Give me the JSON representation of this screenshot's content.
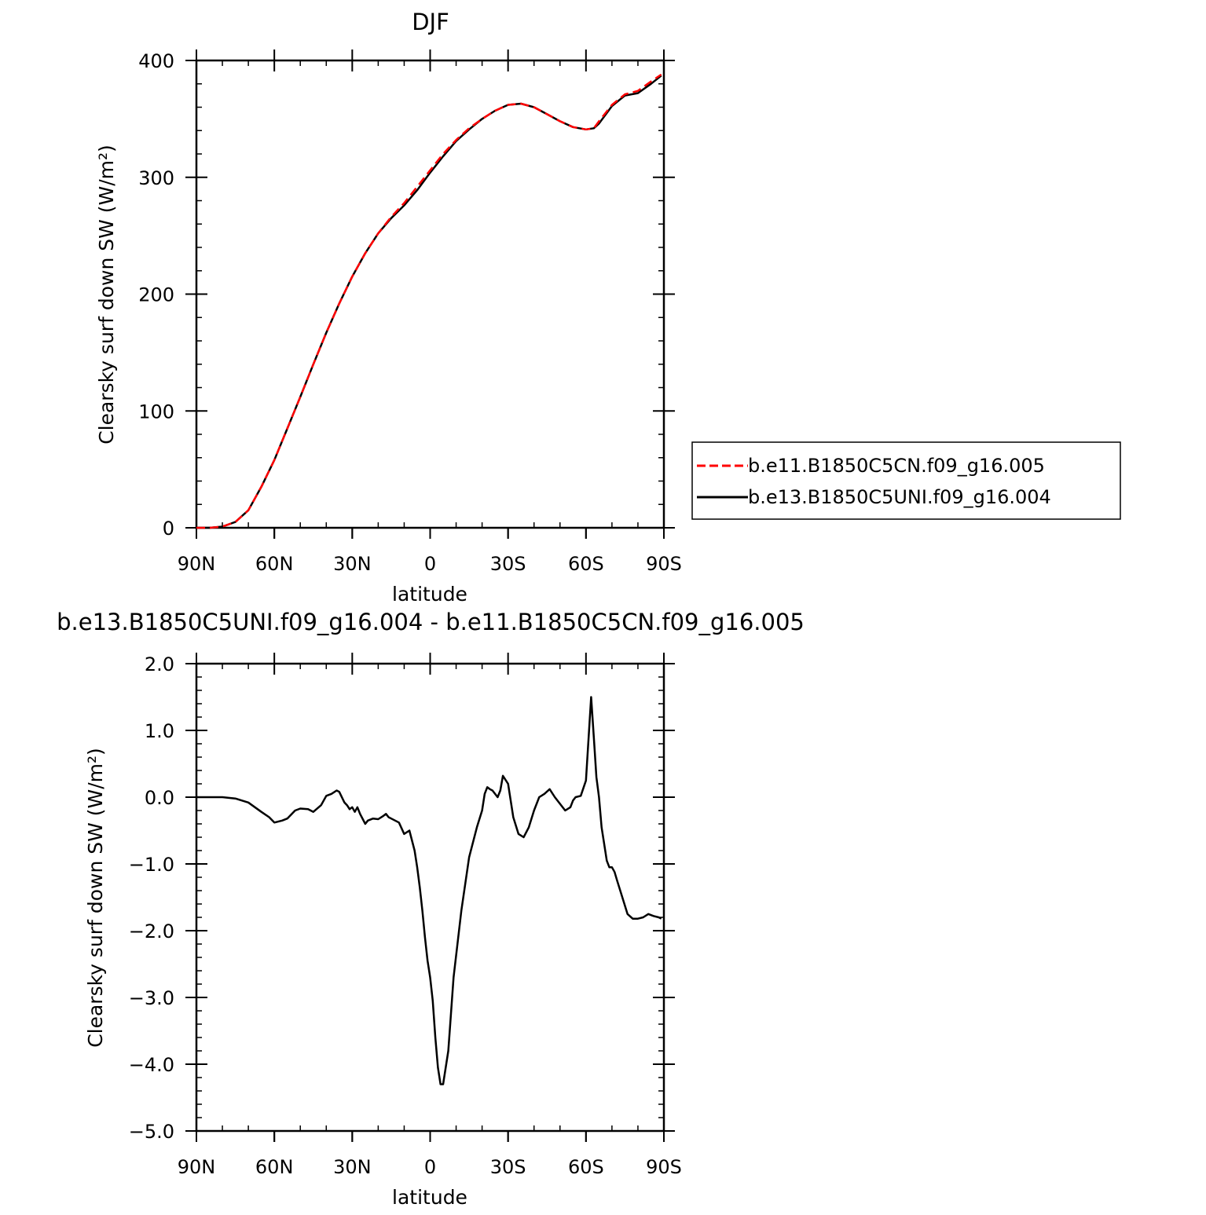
{
  "chart_data": [
    {
      "type": "line",
      "title": "DJF",
      "xlabel": "latitude",
      "ylabel": "Clearsky surf down SW (W/m²)",
      "xlim": [
        90,
        -90
      ],
      "ylim": [
        0,
        400
      ],
      "x_ticks": [
        {
          "value": 90,
          "label": "90N"
        },
        {
          "value": 60,
          "label": "60N"
        },
        {
          "value": 30,
          "label": "30N"
        },
        {
          "value": 0,
          "label": "0"
        },
        {
          "value": -30,
          "label": "30S"
        },
        {
          "value": -60,
          "label": "60S"
        },
        {
          "value": -90,
          "label": "90S"
        }
      ],
      "y_ticks": [
        {
          "value": 0,
          "label": "0"
        },
        {
          "value": 100,
          "label": "100"
        },
        {
          "value": 200,
          "label": "200"
        },
        {
          "value": 300,
          "label": "300"
        },
        {
          "value": 400,
          "label": "400"
        }
      ],
      "x_minor_step": 10,
      "y_minor_step": 20,
      "legend": "right",
      "x": [
        90,
        85,
        80,
        75,
        70,
        65,
        60,
        55,
        50,
        45,
        40,
        35,
        30,
        25,
        20,
        15,
        10,
        5,
        0,
        -5,
        -10,
        -15,
        -20,
        -25,
        -30,
        -35,
        -40,
        -45,
        -50,
        -55,
        -60,
        -63,
        -65,
        -70,
        -75,
        -80,
        -85,
        -89
      ],
      "series": [
        {
          "name": "b.e11.B1850C5CN.f09_g16.005",
          "color": "#ff0000",
          "dash": "dashed",
          "values": [
            0,
            0,
            1,
            5,
            15,
            35,
            58,
            85,
            112,
            140,
            167,
            192,
            215,
            235,
            252,
            266,
            278,
            292,
            306,
            320,
            332,
            342,
            350,
            357,
            362,
            363,
            360,
            354,
            348,
            343,
            341,
            342,
            348,
            362,
            371,
            374,
            382,
            388
          ]
        },
        {
          "name": "b.e13.B1850C5UNI.f09_g16.004",
          "color": "#000000",
          "dash": "solid",
          "values": [
            0,
            0,
            1,
            5,
            15,
            35,
            58,
            85,
            112,
            140,
            167,
            192,
            215,
            235,
            252,
            265,
            276,
            289,
            304,
            318,
            331,
            341,
            350,
            357,
            362,
            363,
            360,
            354,
            348,
            343,
            341,
            342,
            346,
            361,
            370,
            372,
            380,
            387
          ]
        }
      ]
    },
    {
      "type": "line",
      "title": "b.e13.B1850C5UNI.f09_g16.004 - b.e11.B1850C5CN.f09_g16.005",
      "xlabel": "latitude",
      "ylabel": "Clearsky surf down SW (W/m²)",
      "xlim": [
        90,
        -90
      ],
      "ylim": [
        -5.0,
        2.0
      ],
      "x_ticks": [
        {
          "value": 90,
          "label": "90N"
        },
        {
          "value": 60,
          "label": "60N"
        },
        {
          "value": 30,
          "label": "30N"
        },
        {
          "value": 0,
          "label": "0"
        },
        {
          "value": -30,
          "label": "30S"
        },
        {
          "value": -60,
          "label": "60S"
        },
        {
          "value": -90,
          "label": "90S"
        }
      ],
      "y_ticks": [
        {
          "value": 2.0,
          "label": "2.0"
        },
        {
          "value": 1.0,
          "label": "1.0"
        },
        {
          "value": 0.0,
          "label": "0.0"
        },
        {
          "value": -1.0,
          "label": "−1.0"
        },
        {
          "value": -2.0,
          "label": "−2.0"
        },
        {
          "value": -3.0,
          "label": "−3.0"
        },
        {
          "value": -4.0,
          "label": "−4.0"
        },
        {
          "value": -5.0,
          "label": "−5.0"
        }
      ],
      "x_minor_step": 10,
      "y_minor_step": 0.2,
      "x": [
        90,
        80,
        75,
        70,
        65,
        62,
        60,
        57,
        55,
        52,
        50,
        47,
        45,
        42,
        40,
        38,
        36,
        35,
        33,
        32,
        31,
        30,
        29,
        28,
        27,
        25,
        24,
        22,
        20,
        18,
        17,
        16,
        15,
        12,
        10,
        8,
        6,
        5,
        4,
        3,
        2,
        1,
        0,
        -1,
        -2,
        -3,
        -4,
        -5,
        -7,
        -9,
        -12,
        -15,
        -18,
        -20,
        -21,
        -22,
        -23,
        -24,
        -26,
        -27,
        -28,
        -30,
        -32,
        -34,
        -36,
        -38,
        -40,
        -42,
        -44,
        -46,
        -48,
        -50,
        -52,
        -54,
        -55,
        -56,
        -58,
        -60,
        -62,
        -63,
        -64,
        -65,
        -66,
        -67,
        -68,
        -69,
        -70,
        -71,
        -72,
        -74,
        -76,
        -78,
        -80,
        -82,
        -84,
        -86,
        -88,
        -89
      ],
      "series": [
        {
          "name": "",
          "color": "#000000",
          "dash": "solid",
          "values": [
            0.0,
            0.0,
            -0.02,
            -0.08,
            -0.22,
            -0.3,
            -0.38,
            -0.35,
            -0.32,
            -0.2,
            -0.17,
            -0.18,
            -0.22,
            -0.12,
            0.02,
            0.05,
            0.1,
            0.08,
            -0.08,
            -0.12,
            -0.18,
            -0.15,
            -0.22,
            -0.15,
            -0.25,
            -0.4,
            -0.35,
            -0.32,
            -0.33,
            -0.28,
            -0.25,
            -0.3,
            -0.32,
            -0.38,
            -0.55,
            -0.5,
            -0.8,
            -1.05,
            -1.35,
            -1.7,
            -2.1,
            -2.45,
            -2.7,
            -3.05,
            -3.6,
            -4.05,
            -4.3,
            -4.3,
            -3.8,
            -2.7,
            -1.7,
            -0.9,
            -0.45,
            -0.2,
            0.05,
            0.15,
            0.12,
            0.1,
            0.0,
            0.1,
            0.32,
            0.2,
            -0.3,
            -0.55,
            -0.6,
            -0.45,
            -0.2,
            0.0,
            0.05,
            0.12,
            0.0,
            -0.1,
            -0.2,
            -0.15,
            -0.05,
            0.0,
            0.02,
            0.25,
            1.5,
            0.9,
            0.3,
            0.0,
            -0.45,
            -0.7,
            -0.95,
            -1.05,
            -1.05,
            -1.12,
            -1.25,
            -1.5,
            -1.75,
            -1.82,
            -1.82,
            -1.8,
            -1.75,
            -1.78,
            -1.8,
            -1.82
          ]
        }
      ]
    }
  ]
}
